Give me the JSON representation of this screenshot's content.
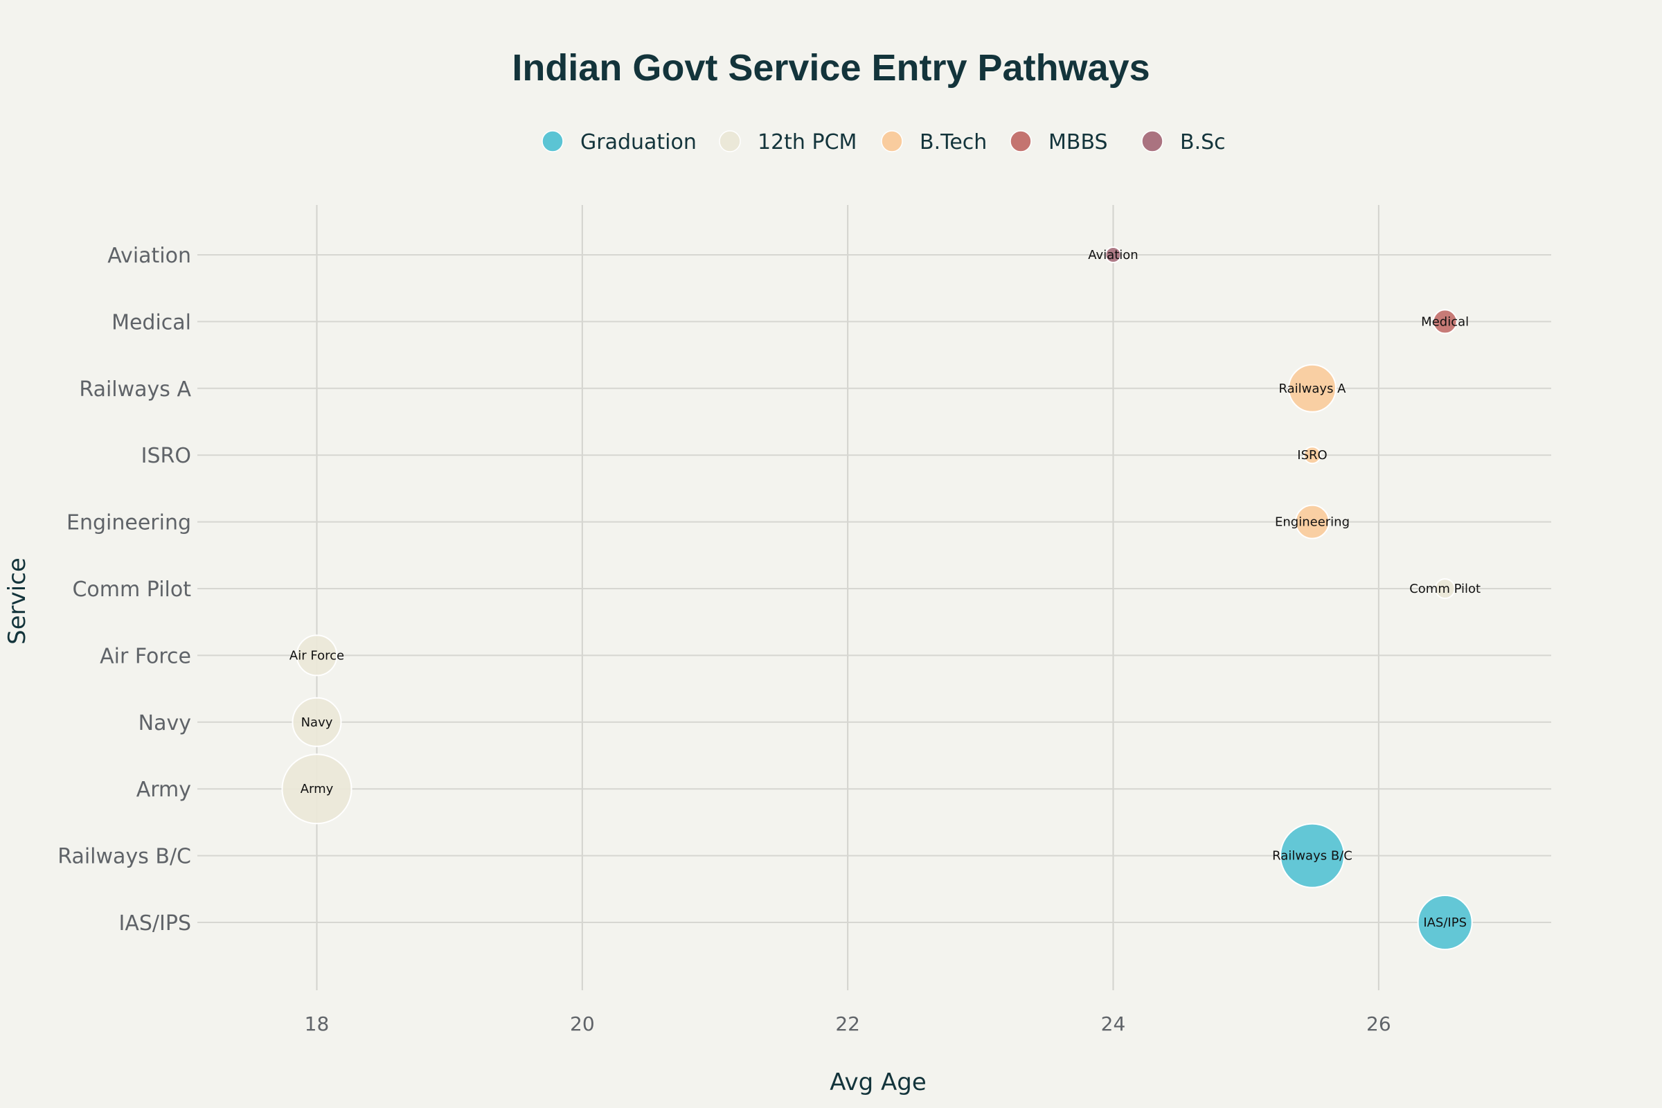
{
  "chart_data": {
    "type": "scatter",
    "title": "Indian Govt Service Entry Pathways",
    "xlabel": "Avg Age",
    "ylabel": "Service",
    "xlim": [
      17.1,
      27.3
    ],
    "xticks": [
      18,
      20,
      22,
      24,
      26
    ],
    "categories": [
      "IAS/IPS",
      "Railways B/C",
      "Army",
      "Navy",
      "Air Force",
      "Comm Pilot",
      "Engineering",
      "ISRO",
      "Railways A",
      "Medical",
      "Aviation"
    ],
    "legend_position": "top-center",
    "grid": true,
    "series": [
      {
        "name": "Graduation",
        "color": "#5bc4d4",
        "points": [
          {
            "label": "IAS/IPS",
            "x": 26.5,
            "y": "IAS/IPS",
            "size": 78
          },
          {
            "label": "Railways B/C",
            "x": 25.5,
            "y": "Railways B/C",
            "size": 92
          }
        ]
      },
      {
        "name": "12th PCM",
        "color": "#ebe8d8",
        "points": [
          {
            "label": "Army",
            "x": 18,
            "y": "Army",
            "size": 100
          },
          {
            "label": "Navy",
            "x": 18,
            "y": "Navy",
            "size": 70
          },
          {
            "label": "Air Force",
            "x": 18,
            "y": "Air Force",
            "size": 58
          },
          {
            "label": "Comm Pilot",
            "x": 26.5,
            "y": "Comm Pilot",
            "size": 28
          }
        ]
      },
      {
        "name": "B.Tech",
        "color": "#f9cc9e",
        "points": [
          {
            "label": "Engineering",
            "x": 25.5,
            "y": "Engineering",
            "size": 48
          },
          {
            "label": "ISRO",
            "x": 25.5,
            "y": "ISRO",
            "size": 24
          },
          {
            "label": "Railways A",
            "x": 25.5,
            "y": "Railways A",
            "size": 68
          }
        ]
      },
      {
        "name": "MBBS",
        "color": "#c47470",
        "points": [
          {
            "label": "Medical",
            "x": 26.5,
            "y": "Medical",
            "size": 34
          }
        ]
      },
      {
        "name": "B.Sc",
        "color": "#aa7380",
        "points": [
          {
            "label": "Aviation",
            "x": 24,
            "y": "Aviation",
            "size": 22
          }
        ]
      }
    ]
  }
}
